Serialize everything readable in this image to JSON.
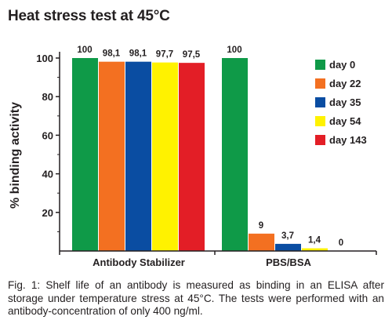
{
  "title": "Heat stress test at 45°C",
  "caption": "Fig. 1: Shelf life of an antibody is measured as binding in an ELISA after storage under temperature stress at 45°C. The tests were performed with an antibody-concentration of only 400 ng/ml.",
  "chart_data": {
    "type": "bar",
    "title": "Heat stress test at 45°C",
    "xlabel": "",
    "ylabel": "% binding activity",
    "ylim": [
      0,
      100
    ],
    "yticks": [
      20,
      40,
      60,
      80,
      100
    ],
    "grid": false,
    "legend_position": "right",
    "categories": [
      "Antibody Stabilizer",
      "PBS/BSA"
    ],
    "series": [
      {
        "name": "day 0",
        "color": "#0f9a48",
        "values": [
          100,
          100
        ],
        "labels": [
          "100",
          "100"
        ]
      },
      {
        "name": "day 22",
        "color": "#f37021",
        "values": [
          98.1,
          9
        ],
        "labels": [
          "98,1",
          "9"
        ]
      },
      {
        "name": "day 35",
        "color": "#0a4da2",
        "values": [
          98.1,
          3.7
        ],
        "labels": [
          "98,1",
          "3,7"
        ]
      },
      {
        "name": "day 54",
        "color": "#fff200",
        "values": [
          97.7,
          1.4
        ],
        "labels": [
          "97,7",
          "1,4"
        ]
      },
      {
        "name": "day 143",
        "color": "#e31e26",
        "values": [
          97.5,
          0
        ],
        "labels": [
          "97,5",
          "0"
        ]
      }
    ]
  }
}
